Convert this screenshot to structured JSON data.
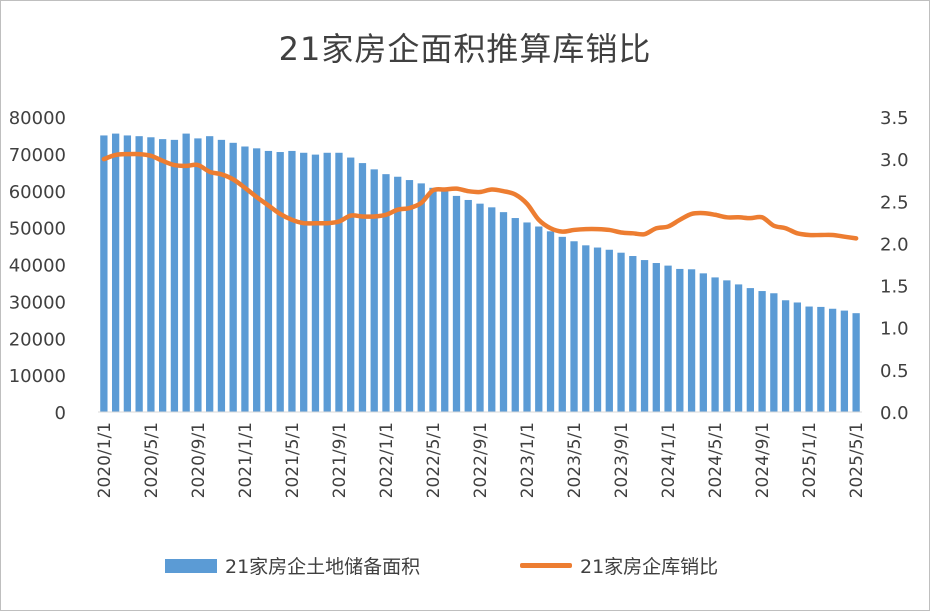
{
  "chart_data": {
    "type": "bar+line",
    "title": "21家房企面积推算库销比",
    "categories": [
      "2020/1/1",
      "2020/2/1",
      "2020/3/1",
      "2020/4/1",
      "2020/5/1",
      "2020/6/1",
      "2020/7/1",
      "2020/8/1",
      "2020/9/1",
      "2020/10/1",
      "2020/11/1",
      "2020/12/1",
      "2021/1/1",
      "2021/2/1",
      "2021/3/1",
      "2021/4/1",
      "2021/5/1",
      "2021/6/1",
      "2021/7/1",
      "2021/8/1",
      "2021/9/1",
      "2021/10/1",
      "2021/11/1",
      "2021/12/1",
      "2022/1/1",
      "2022/2/1",
      "2022/3/1",
      "2022/4/1",
      "2022/5/1",
      "2022/6/1",
      "2022/7/1",
      "2022/8/1",
      "2022/9/1",
      "2022/10/1",
      "2022/11/1",
      "2022/12/1",
      "2023/1/1",
      "2023/2/1",
      "2023/3/1",
      "2023/4/1",
      "2023/5/1",
      "2023/6/1",
      "2023/7/1",
      "2023/8/1",
      "2023/9/1",
      "2023/10/1",
      "2023/11/1",
      "2023/12/1",
      "2024/1/1",
      "2024/2/1",
      "2024/3/1",
      "2024/4/1",
      "2024/5/1",
      "2024/6/1",
      "2024/7/1",
      "2024/8/1",
      "2024/9/1",
      "2024/10/1",
      "2024/11/1",
      "2024/12/1",
      "2025/1/1",
      "2025/2/1",
      "2025/3/1",
      "2025/4/1",
      "2025/5/1"
    ],
    "x_tick_labels": [
      "2020/1/1",
      "2020/5/1",
      "2020/9/1",
      "2021/1/1",
      "2021/5/1",
      "2021/9/1",
      "2022/1/1",
      "2022/5/1",
      "2022/9/1",
      "2023/1/1",
      "2023/5/1",
      "2023/9/1",
      "2024/1/1",
      "2024/5/1",
      "2024/9/1",
      "2025/1/1",
      "2025/5/1"
    ],
    "y_left": {
      "min": 0,
      "max": 80000,
      "ticks": [
        "0",
        "10000",
        "20000",
        "30000",
        "40000",
        "50000",
        "60000",
        "70000",
        "80000"
      ]
    },
    "y_right": {
      "min": 0,
      "max": 3.5,
      "ticks": [
        "0.0",
        "0.5",
        "1.0",
        "1.5",
        "2.0",
        "2.5",
        "3.0",
        "3.5"
      ]
    },
    "series": [
      {
        "name": "21家房企土地储备面积",
        "type": "bar",
        "axis": "left",
        "color": "#5b9bd5",
        "values": [
          75000,
          75500,
          75000,
          74800,
          74500,
          74000,
          73800,
          75500,
          74200,
          74800,
          73800,
          73000,
          72000,
          71500,
          70800,
          70500,
          70800,
          70300,
          69800,
          70300,
          70300,
          69000,
          67500,
          65800,
          64500,
          63800,
          62900,
          62000,
          60800,
          59800,
          58600,
          57500,
          56500,
          55500,
          54200,
          52600,
          51400,
          50300,
          49000,
          47500,
          46300,
          45200,
          44600,
          44000,
          43200,
          42300,
          41200,
          40400,
          39700,
          38800,
          38700,
          37600,
          36500,
          35700,
          34600,
          33600,
          32800,
          32200,
          30300,
          29700,
          28600,
          28500,
          28000,
          27500,
          26800
        ]
      },
      {
        "name": "21家房企库销比",
        "type": "line",
        "axis": "right",
        "color": "#ed7d31",
        "values": [
          3.0,
          3.05,
          3.06,
          3.06,
          3.04,
          2.98,
          2.93,
          2.92,
          2.93,
          2.85,
          2.82,
          2.76,
          2.66,
          2.55,
          2.45,
          2.35,
          2.28,
          2.24,
          2.24,
          2.24,
          2.26,
          2.33,
          2.32,
          2.32,
          2.34,
          2.4,
          2.42,
          2.48,
          2.63,
          2.64,
          2.65,
          2.62,
          2.61,
          2.64,
          2.62,
          2.58,
          2.47,
          2.28,
          2.18,
          2.14,
          2.16,
          2.17,
          2.17,
          2.16,
          2.13,
          2.12,
          2.11,
          2.18,
          2.2,
          2.28,
          2.35,
          2.36,
          2.34,
          2.31,
          2.31,
          2.3,
          2.31,
          2.21,
          2.18,
          2.12,
          2.1,
          2.1,
          2.1,
          2.08,
          2.06
        ]
      }
    ],
    "legend_position": "bottom"
  }
}
